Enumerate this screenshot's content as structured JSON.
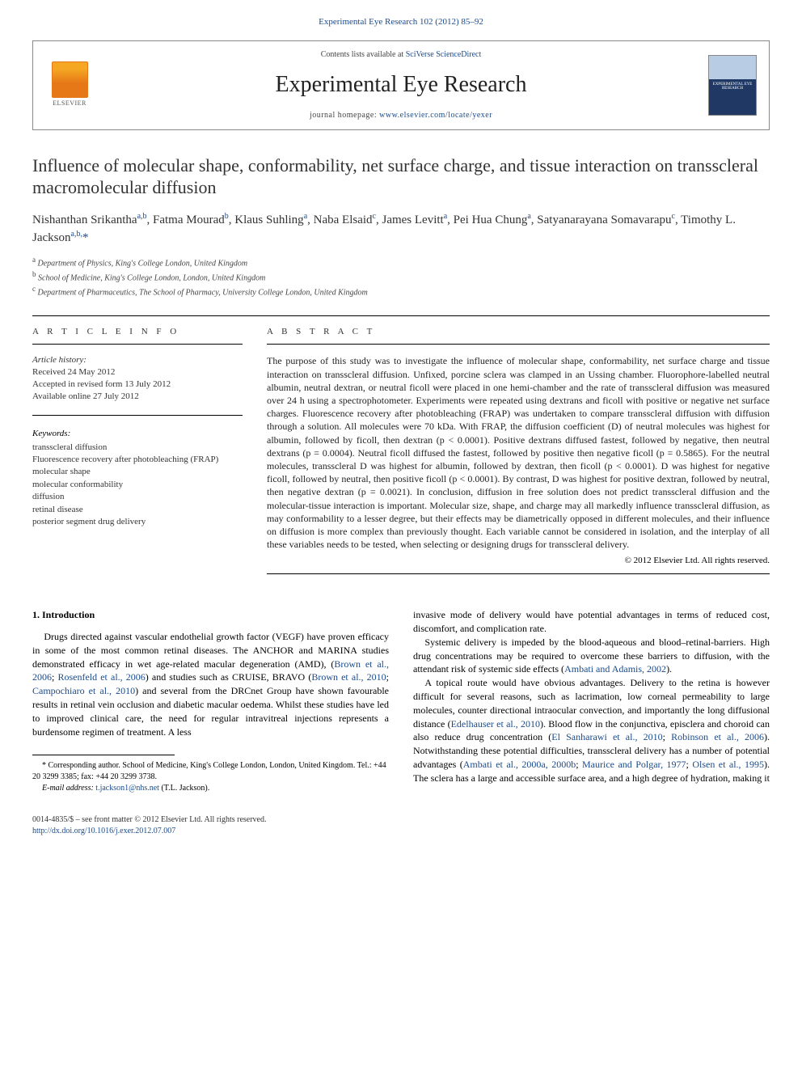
{
  "journal_ref": "Experimental Eye Research 102 (2012) 85–92",
  "header": {
    "contents_prefix": "Contents lists available at ",
    "contents_link": "SciVerse ScienceDirect",
    "journal_title": "Experimental Eye Research",
    "homepage_prefix": "journal homepage: ",
    "homepage_url": "www.elsevier.com/locate/yexer",
    "elsevier_label": "ELSEVIER",
    "cover_text": "EXPERIMENTAL EYE RESEARCH"
  },
  "article": {
    "title": "Influence of molecular shape, conformability, net surface charge, and tissue interaction on transscleral macromolecular diffusion",
    "authors_html": "Nishanthan Srikantha<sup>a,b</sup>, Fatma Mourad<sup>b</sup>, Klaus Suhling<sup>a</sup>, Naba Elsaid<sup>c</sup>, James Levitt<sup>a</sup>, Pei Hua Chung<sup>a</sup>, Satyanarayana Somavarapu<sup>c</sup>, Timothy L. Jackson<sup>a,b,</sup><span class='corr'>*</span>",
    "affiliations": [
      {
        "sup": "a",
        "text": "Department of Physics, King's College London, United Kingdom"
      },
      {
        "sup": "b",
        "text": "School of Medicine, King's College London, London, United Kingdom"
      },
      {
        "sup": "c",
        "text": "Department of Pharmaceutics, The School of Pharmacy, University College London, United Kingdom"
      }
    ]
  },
  "info": {
    "heading": "A R T I C L E   I N F O",
    "history_label": "Article history:",
    "history": [
      "Received 24 May 2012",
      "Accepted in revised form 13 July 2012",
      "Available online 27 July 2012"
    ],
    "keywords_label": "Keywords:",
    "keywords": [
      "transscleral diffusion",
      "Fluorescence recovery after photobleaching (FRAP)",
      "molecular shape",
      "molecular conformability",
      "diffusion",
      "retinal disease",
      "posterior segment drug delivery"
    ]
  },
  "abstract": {
    "heading": "A B S T R A C T",
    "text": "The purpose of this study was to investigate the influence of molecular shape, conformability, net surface charge and tissue interaction on transscleral diffusion. Unfixed, porcine sclera was clamped in an Ussing chamber. Fluorophore-labelled neutral albumin, neutral dextran, or neutral ficoll were placed in one hemi-chamber and the rate of transscleral diffusion was measured over 24 h using a spectrophotometer. Experiments were repeated using dextrans and ficoll with positive or negative net surface charges. Fluorescence recovery after photobleaching (FRAP) was undertaken to compare transscleral diffusion with diffusion through a solution. All molecules were 70 kDa. With FRAP, the diffusion coefficient (D) of neutral molecules was highest for albumin, followed by ficoll, then dextran (p < 0.0001). Positive dextrans diffused fastest, followed by negative, then neutral dextrans (p = 0.0004). Neutral ficoll diffused the fastest, followed by positive then negative ficoll (p = 0.5865). For the neutral molecules, transscleral D was highest for albumin, followed by dextran, then ficoll (p < 0.0001). D was highest for negative ficoll, followed by neutral, then positive ficoll (p < 0.0001). By contrast, D was highest for positive dextran, followed by neutral, then negative dextran (p = 0.0021). In conclusion, diffusion in free solution does not predict transscleral diffusion and the molecular-tissue interaction is important. Molecular size, shape, and charge may all markedly influence transscleral diffusion, as may conformability to a lesser degree, but their effects may be diametrically opposed in different molecules, and their influence on diffusion is more complex than previously thought. Each variable cannot be considered in isolation, and the interplay of all these variables needs to be tested, when selecting or designing drugs for transscleral delivery.",
    "copyright": "© 2012 Elsevier Ltd. All rights reserved."
  },
  "body": {
    "section_heading": "1. Introduction",
    "col1_p1_pre": "Drugs directed against vascular endothelial growth factor (VEGF) have proven efficacy in some of the most common retinal diseases. The ANCHOR and MARINA studies demonstrated efficacy in wet age-related macular degeneration (AMD), (",
    "col1_ref1": "Brown et al., 2006",
    "col1_sep1": "; ",
    "col1_ref2": "Rosenfeld et al., 2006",
    "col1_mid1": ") and studies such as CRUISE, BRAVO (",
    "col1_ref3": "Brown et al., 2010",
    "col1_sep2": "; ",
    "col1_ref4": "Campochiaro et al., 2010",
    "col1_p1_post": ") and several from the DRCnet Group have shown favourable results in retinal vein occlusion and diabetic macular oedema. Whilst these studies have led to improved clinical care, the need for regular intravitreal injections represents a burdensome regimen of treatment. A less",
    "col2_p1": "invasive mode of delivery would have potential advantages in terms of reduced cost, discomfort, and complication rate.",
    "col2_p2_pre": "Systemic delivery is impeded by the blood-aqueous and blood–retinal-barriers. High drug concentrations may be required to overcome these barriers to diffusion, with the attendant risk of systemic side effects (",
    "col2_ref1": "Ambati and Adamis, 2002",
    "col2_p2_post": ").",
    "col2_p3_pre": "A topical route would have obvious advantages. Delivery to the retina is however difficult for several reasons, such as lacrimation, low corneal permeability to large molecules, counter directional intraocular convection, and importantly the long diffusional distance (",
    "col2_ref2": "Edelhauser et al., 2010",
    "col2_mid1": "). Blood flow in the conjunctiva, episclera and choroid can also reduce drug concentration (",
    "col2_ref3": "El Sanharawi et al., 2010",
    "col2_sep1": "; ",
    "col2_ref4": "Robinson et al., 2006",
    "col2_mid2": "). Notwithstanding these potential difficulties, transscleral delivery has a number of potential advantages (",
    "col2_ref5": "Ambati et al., 2000a, 2000b",
    "col2_sep2": "; ",
    "col2_ref6": "Maurice and Polgar, 1977",
    "col2_sep3": "; ",
    "col2_ref7": "Olsen et al., 1995",
    "col2_p3_post": "). The sclera has a large and accessible surface area, and a high degree of hydration, making it"
  },
  "footnote": {
    "corr": "* Corresponding author. School of Medicine, King's College London, London, United Kingdom. Tel.: +44 20 3299 3385; fax: +44 20 3299 3738.",
    "email_label": "E-mail address: ",
    "email": "t.jackson1@nhs.net",
    "email_suffix": " (T.L. Jackson)."
  },
  "bottom": {
    "line1": "0014-4835/$ – see front matter © 2012 Elsevier Ltd. All rights reserved.",
    "doi": "http://dx.doi.org/10.1016/j.exer.2012.07.007"
  }
}
